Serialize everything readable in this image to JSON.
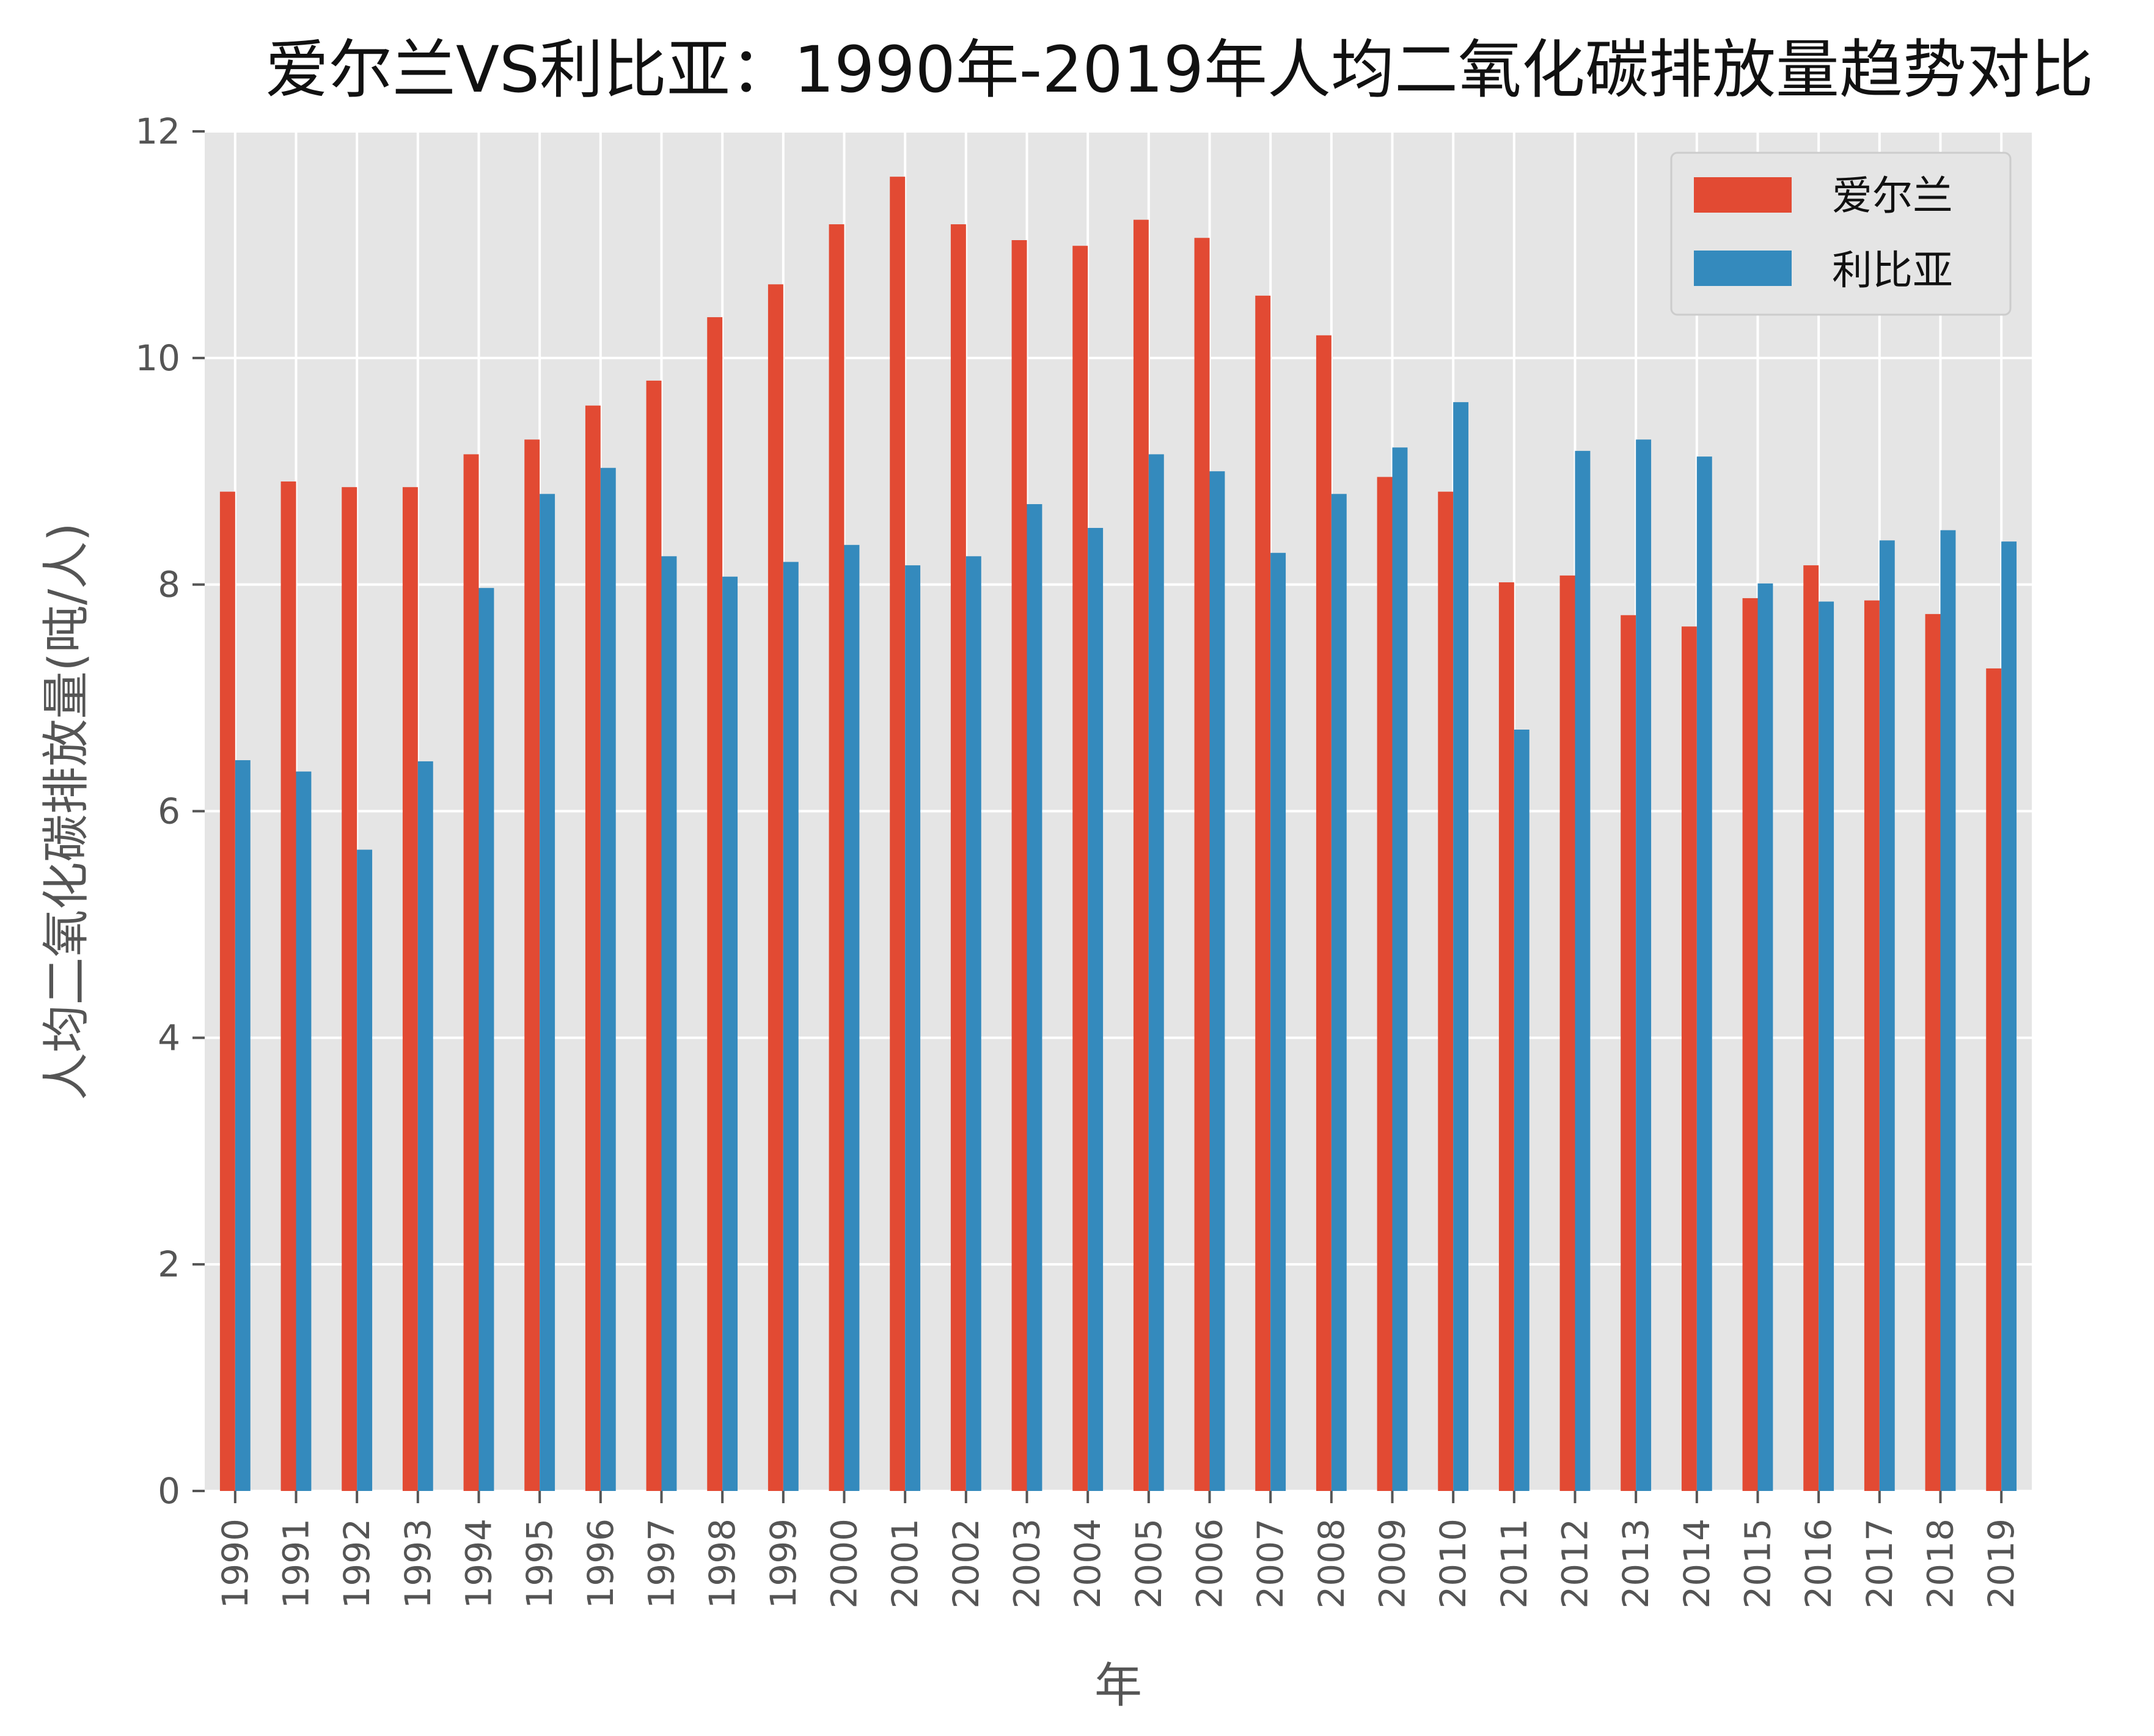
{
  "chart_data": {
    "type": "bar",
    "title": "爱尔兰VS利比亚：1990年-2019年人均二氧化碳排放量趋势对比",
    "xlabel": "年",
    "ylabel": "人均二氧化碳排放量(吨/人)",
    "ylim": [
      0,
      12
    ],
    "yticks": [
      "0",
      "2",
      "4",
      "6",
      "8",
      "10",
      "12"
    ],
    "grid": true,
    "legend_position": "top-right",
    "categories": [
      "1990",
      "1991",
      "1992",
      "1993",
      "1994",
      "1995",
      "1996",
      "1997",
      "1998",
      "1999",
      "2000",
      "2001",
      "2002",
      "2003",
      "2004",
      "2005",
      "2006",
      "2007",
      "2008",
      "2009",
      "2010",
      "2011",
      "2012",
      "2013",
      "2014",
      "2015",
      "2016",
      "2017",
      "2018",
      "2019"
    ],
    "series": [
      {
        "name": "爱尔兰",
        "color": "#E24A33",
        "values": [
          8.82,
          8.91,
          8.86,
          8.86,
          9.15,
          9.28,
          9.58,
          9.8,
          10.36,
          10.65,
          11.18,
          11.6,
          11.18,
          11.04,
          10.99,
          11.22,
          11.06,
          10.55,
          10.2,
          8.95,
          8.82,
          8.02,
          8.08,
          7.73,
          7.63,
          7.88,
          8.17,
          7.86,
          7.74,
          7.26
        ]
      },
      {
        "name": "利比亚",
        "color": "#348ABD",
        "values": [
          6.45,
          6.35,
          5.66,
          6.44,
          7.97,
          8.8,
          9.03,
          8.25,
          8.07,
          8.2,
          8.35,
          8.17,
          8.25,
          8.71,
          8.5,
          9.15,
          9.0,
          8.28,
          8.8,
          9.21,
          9.61,
          6.72,
          9.18,
          9.28,
          9.13,
          8.01,
          7.85,
          8.39,
          8.48,
          8.38
        ]
      }
    ]
  }
}
